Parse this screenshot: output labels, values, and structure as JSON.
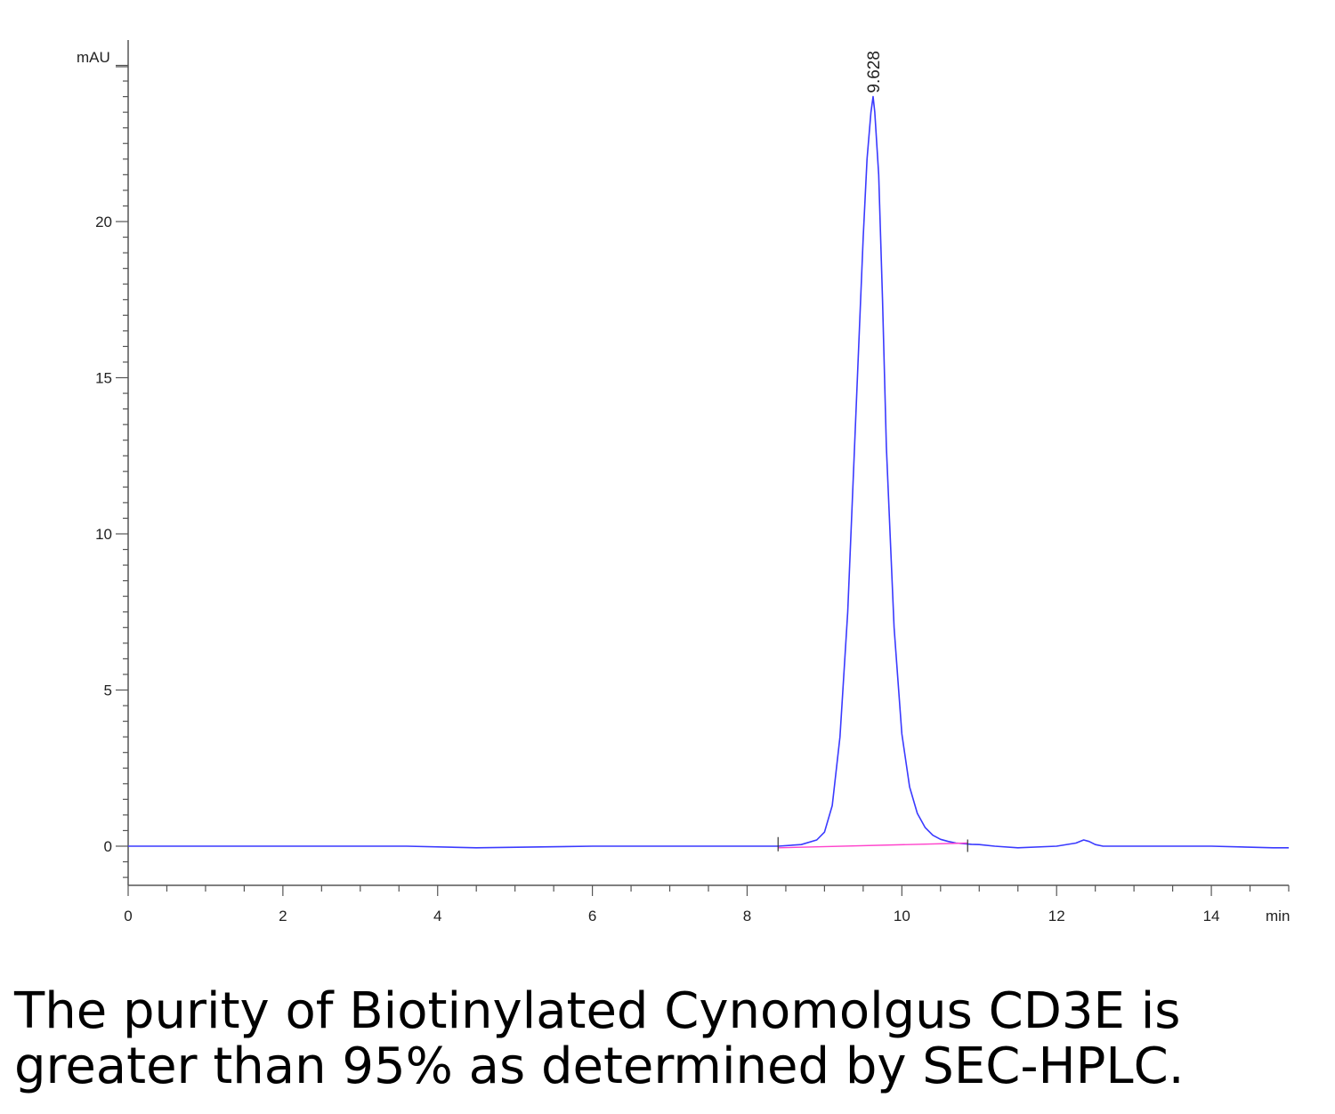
{
  "chart_data": {
    "type": "line",
    "title": "",
    "xlabel": "min",
    "ylabel": "mAU",
    "xlim": [
      0,
      15
    ],
    "ylim": [
      -1.3,
      25.5
    ],
    "x_ticks": [
      0,
      2,
      4,
      6,
      8,
      10,
      12,
      14
    ],
    "x_tick_labels": [
      "0",
      "2",
      "4",
      "6",
      "8",
      "10",
      "12",
      "14"
    ],
    "y_ticks": [
      0,
      5,
      10,
      15,
      20
    ],
    "y_tick_labels": [
      "0",
      "5",
      "10",
      "15",
      "20"
    ],
    "grid": false,
    "series": [
      {
        "color": "#3a3aff",
        "x": [
          0,
          3.6,
          4.5,
          6.0,
          8.0,
          8.4,
          8.7,
          8.9,
          9.0,
          9.1,
          9.2,
          9.3,
          9.4,
          9.5,
          9.55,
          9.6,
          9.628,
          9.65,
          9.7,
          9.75,
          9.8,
          9.9,
          10.0,
          10.1,
          10.2,
          10.3,
          10.4,
          10.5,
          10.6,
          10.7,
          10.8,
          10.9,
          11.0,
          11.2,
          11.5,
          12.0,
          12.25,
          12.35,
          12.42,
          12.5,
          12.6,
          13.0,
          14.0,
          14.8,
          15.0
        ],
        "y": [
          0,
          0,
          -0.05,
          0,
          0,
          0,
          0.05,
          0.2,
          0.45,
          1.3,
          3.5,
          7.5,
          13.5,
          19.5,
          22.0,
          23.5,
          24.0,
          23.5,
          21.5,
          17.5,
          12.8,
          7.0,
          3.6,
          1.9,
          1.05,
          0.6,
          0.35,
          0.22,
          0.15,
          0.1,
          0.08,
          0.06,
          0.05,
          0.0,
          -0.05,
          0.0,
          0.1,
          0.2,
          0.15,
          0.05,
          0.0,
          0.0,
          0.0,
          -0.05,
          -0.05
        ]
      },
      {
        "name": "baseline",
        "color": "#ff44cc",
        "x": [
          8.4,
          10.85
        ],
        "y": [
          -0.05,
          0.1
        ]
      }
    ],
    "annotations": [
      {
        "text": "9.628",
        "x": 9.628,
        "y": 24.0
      }
    ]
  },
  "caption": {
    "line1": "The purity of Biotinylated Cynomolgus CD3E is",
    "line2": "greater than 95% as determined by SEC-HPLC."
  }
}
